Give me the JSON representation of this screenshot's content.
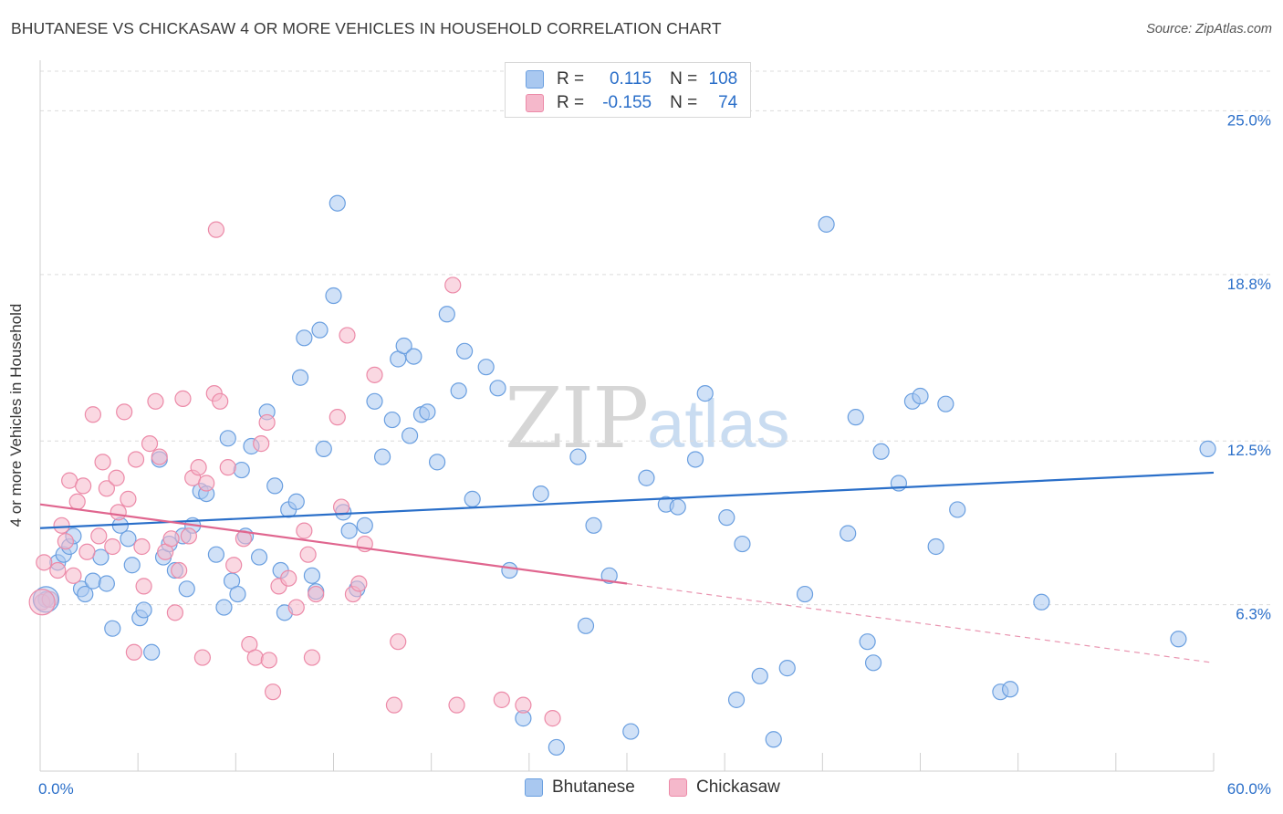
{
  "title": "BHUTANESE VS CHICKASAW 4 OR MORE VEHICLES IN HOUSEHOLD CORRELATION CHART",
  "source": "Source: ZipAtlas.com",
  "watermark": {
    "zip": "ZIP",
    "atlas": "atlas"
  },
  "legend_box": {
    "r_label": "R =",
    "n_label": "N =",
    "rows": [
      {
        "series": "Bhutanese",
        "r": "0.115",
        "n": "108"
      },
      {
        "series": "Chickasaw",
        "r": "-0.155",
        "n": "74"
      }
    ]
  },
  "colors": {
    "bhutanese_fill": "#a9c8f0",
    "bhutanese_stroke": "#6a9fe0",
    "bhutanese_line": "#2a6fc9",
    "chickasaw_fill": "#f5b8cb",
    "chickasaw_stroke": "#ec8aa8",
    "chickasaw_line": "#e0668f",
    "axis_text": "#2b6fc9"
  },
  "chart_data": {
    "type": "scatter",
    "title": "BHUTANESE VS CHICKASAW 4 OR MORE VEHICLES IN HOUSEHOLD CORRELATION CHART",
    "xlabel": "",
    "ylabel": "4 or more Vehicles in Household",
    "xlim": [
      0,
      60
    ],
    "ylim": [
      0,
      26.5
    ],
    "x_tick_labels": [
      "0.0%",
      "60.0%"
    ],
    "y_ticks": [
      6.3,
      12.5,
      18.8,
      25.0
    ],
    "y_tick_labels": [
      "6.3%",
      "12.5%",
      "18.8%",
      "25.0%"
    ],
    "grid": true,
    "legend_position": "bottom-center",
    "series": [
      {
        "name": "Bhutanese",
        "trend": {
          "x": [
            0,
            60
          ],
          "y": [
            9.2,
            11.3
          ],
          "dashed_from": null
        },
        "points": [
          [
            0.3,
            6.5
          ],
          [
            0.9,
            7.9
          ],
          [
            1.2,
            8.2
          ],
          [
            1.5,
            8.5
          ],
          [
            1.7,
            8.9
          ],
          [
            2.1,
            6.9
          ],
          [
            2.3,
            6.7
          ],
          [
            2.7,
            7.2
          ],
          [
            3.1,
            8.1
          ],
          [
            3.4,
            7.1
          ],
          [
            3.7,
            5.4
          ],
          [
            4.1,
            9.3
          ],
          [
            4.5,
            8.8
          ],
          [
            4.7,
            7.8
          ],
          [
            5.1,
            5.8
          ],
          [
            5.3,
            6.1
          ],
          [
            5.7,
            4.5
          ],
          [
            6.1,
            11.8
          ],
          [
            6.3,
            8.1
          ],
          [
            6.6,
            8.6
          ],
          [
            6.9,
            7.6
          ],
          [
            7.3,
            8.9
          ],
          [
            7.5,
            6.9
          ],
          [
            7.8,
            9.3
          ],
          [
            8.2,
            10.6
          ],
          [
            8.5,
            10.5
          ],
          [
            9.0,
            8.2
          ],
          [
            9.4,
            6.2
          ],
          [
            9.6,
            12.6
          ],
          [
            9.8,
            7.2
          ],
          [
            10.1,
            6.7
          ],
          [
            10.3,
            11.4
          ],
          [
            10.5,
            8.9
          ],
          [
            10.8,
            12.3
          ],
          [
            11.2,
            8.1
          ],
          [
            11.6,
            13.6
          ],
          [
            12.0,
            10.8
          ],
          [
            12.3,
            7.6
          ],
          [
            12.5,
            6.0
          ],
          [
            12.7,
            9.9
          ],
          [
            13.1,
            10.2
          ],
          [
            13.3,
            14.9
          ],
          [
            13.5,
            16.4
          ],
          [
            13.9,
            7.4
          ],
          [
            14.1,
            6.8
          ],
          [
            14.3,
            16.7
          ],
          [
            14.5,
            12.2
          ],
          [
            15.0,
            18.0
          ],
          [
            15.2,
            21.5
          ],
          [
            15.5,
            9.8
          ],
          [
            15.8,
            9.1
          ],
          [
            16.2,
            6.9
          ],
          [
            16.6,
            9.3
          ],
          [
            17.1,
            14.0
          ],
          [
            17.5,
            11.9
          ],
          [
            18.0,
            13.3
          ],
          [
            18.3,
            15.6
          ],
          [
            18.6,
            16.1
          ],
          [
            18.9,
            12.7
          ],
          [
            19.1,
            15.7
          ],
          [
            19.5,
            13.5
          ],
          [
            19.8,
            13.6
          ],
          [
            20.3,
            11.7
          ],
          [
            20.8,
            17.3
          ],
          [
            21.4,
            14.4
          ],
          [
            21.7,
            15.9
          ],
          [
            22.1,
            10.3
          ],
          [
            22.8,
            15.3
          ],
          [
            23.4,
            14.5
          ],
          [
            24.0,
            7.6
          ],
          [
            24.7,
            2.0
          ],
          [
            25.6,
            10.5
          ],
          [
            26.4,
            0.9
          ],
          [
            27.5,
            11.9
          ],
          [
            27.9,
            5.5
          ],
          [
            28.3,
            9.3
          ],
          [
            29.1,
            7.4
          ],
          [
            30.2,
            1.5
          ],
          [
            31.0,
            11.1
          ],
          [
            32.0,
            10.1
          ],
          [
            32.6,
            10.0
          ],
          [
            33.5,
            11.8
          ],
          [
            34.0,
            14.3
          ],
          [
            35.1,
            9.6
          ],
          [
            35.6,
            2.7
          ],
          [
            35.9,
            8.6
          ],
          [
            36.8,
            3.6
          ],
          [
            37.5,
            1.2
          ],
          [
            38.2,
            3.9
          ],
          [
            39.1,
            6.7
          ],
          [
            40.2,
            20.7
          ],
          [
            41.3,
            9.0
          ],
          [
            41.7,
            13.4
          ],
          [
            42.3,
            4.9
          ],
          [
            42.6,
            4.1
          ],
          [
            43.0,
            12.1
          ],
          [
            43.9,
            10.9
          ],
          [
            44.6,
            14.0
          ],
          [
            45.0,
            14.2
          ],
          [
            45.8,
            8.5
          ],
          [
            46.3,
            13.9
          ],
          [
            46.9,
            9.9
          ],
          [
            49.1,
            3.0
          ],
          [
            49.6,
            3.1
          ],
          [
            51.2,
            6.4
          ],
          [
            58.2,
            5.0
          ],
          [
            59.7,
            12.2
          ]
        ]
      },
      {
        "name": "Chickasaw",
        "trend": {
          "x": [
            0,
            60
          ],
          "y": [
            10.1,
            4.1
          ],
          "dashed_from": 30
        },
        "points": [
          [
            0.1,
            6.4
          ],
          [
            0.2,
            7.9
          ],
          [
            0.5,
            6.5
          ],
          [
            0.9,
            7.6
          ],
          [
            1.1,
            9.3
          ],
          [
            1.3,
            8.7
          ],
          [
            1.5,
            11.0
          ],
          [
            1.7,
            7.4
          ],
          [
            1.9,
            10.2
          ],
          [
            2.2,
            10.8
          ],
          [
            2.4,
            8.3
          ],
          [
            2.7,
            13.5
          ],
          [
            3.0,
            8.9
          ],
          [
            3.2,
            11.7
          ],
          [
            3.4,
            10.7
          ],
          [
            3.7,
            8.5
          ],
          [
            3.9,
            11.1
          ],
          [
            4.0,
            9.8
          ],
          [
            4.3,
            13.6
          ],
          [
            4.5,
            10.3
          ],
          [
            4.8,
            4.5
          ],
          [
            4.9,
            11.8
          ],
          [
            5.2,
            8.5
          ],
          [
            5.3,
            7.0
          ],
          [
            5.6,
            12.4
          ],
          [
            5.9,
            14.0
          ],
          [
            6.1,
            11.9
          ],
          [
            6.4,
            8.3
          ],
          [
            6.7,
            8.8
          ],
          [
            6.9,
            6.0
          ],
          [
            7.1,
            7.6
          ],
          [
            7.3,
            14.1
          ],
          [
            7.6,
            8.9
          ],
          [
            7.8,
            11.1
          ],
          [
            8.1,
            11.5
          ],
          [
            8.3,
            4.3
          ],
          [
            8.5,
            10.9
          ],
          [
            8.9,
            14.3
          ],
          [
            9.0,
            20.5
          ],
          [
            9.2,
            14.0
          ],
          [
            9.6,
            11.5
          ],
          [
            9.9,
            7.8
          ],
          [
            10.4,
            8.8
          ],
          [
            10.7,
            4.8
          ],
          [
            11.0,
            4.3
          ],
          [
            11.3,
            12.4
          ],
          [
            11.6,
            13.2
          ],
          [
            11.7,
            4.2
          ],
          [
            11.9,
            3.0
          ],
          [
            12.2,
            7.0
          ],
          [
            12.7,
            7.3
          ],
          [
            13.1,
            6.2
          ],
          [
            13.5,
            9.1
          ],
          [
            13.7,
            8.2
          ],
          [
            13.9,
            4.3
          ],
          [
            14.1,
            6.7
          ],
          [
            15.2,
            13.4
          ],
          [
            15.4,
            10.0
          ],
          [
            15.7,
            16.5
          ],
          [
            16.0,
            6.7
          ],
          [
            16.3,
            7.1
          ],
          [
            16.6,
            8.6
          ],
          [
            17.1,
            15.0
          ],
          [
            18.1,
            2.5
          ],
          [
            18.3,
            4.9
          ],
          [
            21.1,
            18.4
          ],
          [
            21.3,
            2.5
          ],
          [
            23.6,
            2.7
          ],
          [
            24.7,
            2.5
          ],
          [
            26.2,
            2.0
          ]
        ]
      }
    ],
    "large_markers": [
      {
        "series": "Bhutanese",
        "x": 0.3,
        "y": 6.5
      },
      {
        "series": "Chickasaw",
        "x": 0.1,
        "y": 6.4
      }
    ]
  }
}
